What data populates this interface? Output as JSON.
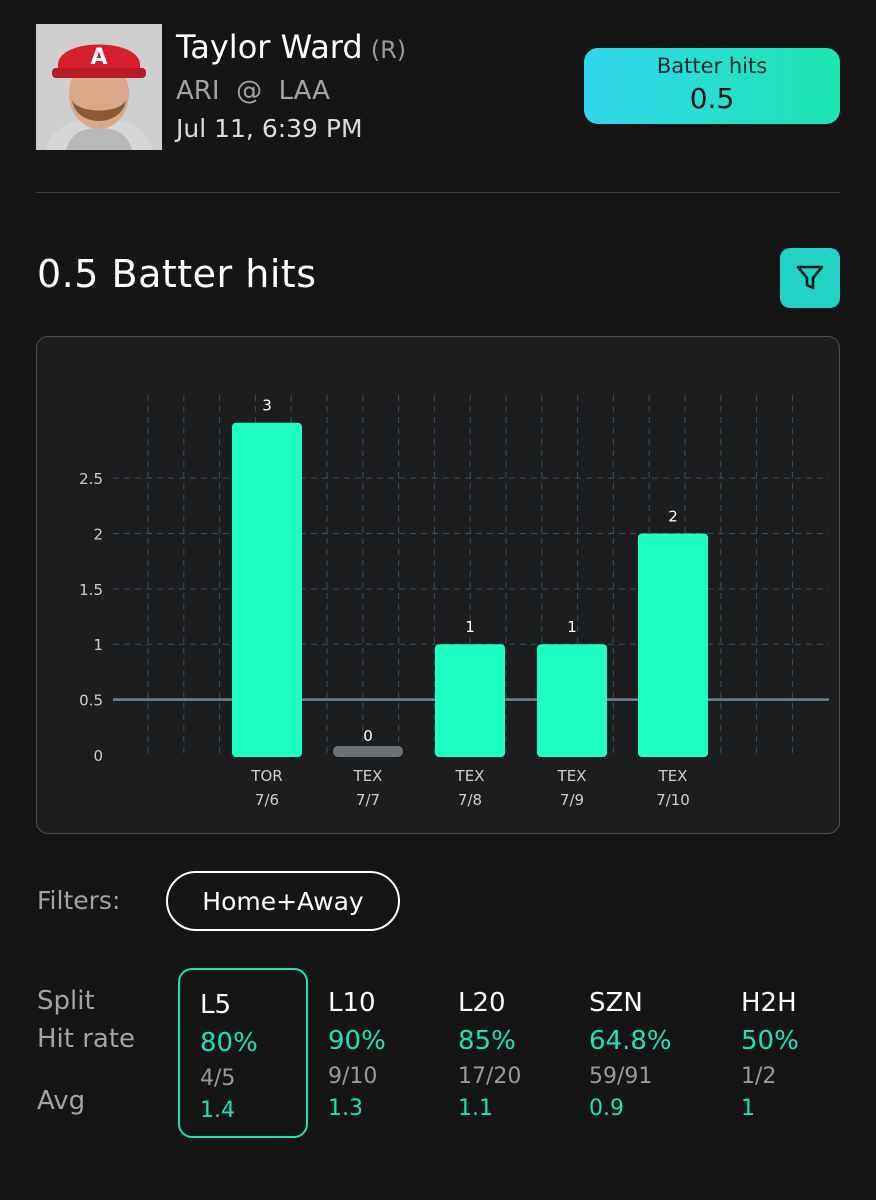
{
  "player": {
    "name": "Taylor Ward",
    "hand": "(R)",
    "away_team": "ARI",
    "at_symbol": "@",
    "home_team": "LAA",
    "game_time": "Jul 11, 6:39 PM"
  },
  "prop_badge": {
    "label": "Batter hits",
    "line": "0.5"
  },
  "section": {
    "title": "0.5 Batter hits",
    "filter_icon": "funnel-icon"
  },
  "chart_data": {
    "type": "bar",
    "categories": [
      "TOR 7/6",
      "TEX 7/7",
      "TEX 7/8",
      "TEX 7/9",
      "TEX 7/10"
    ],
    "opponents": [
      "TOR",
      "TEX",
      "TEX",
      "TEX",
      "TEX"
    ],
    "dates": [
      "7/6",
      "7/7",
      "7/8",
      "7/9",
      "7/10"
    ],
    "values": [
      3,
      0,
      1,
      1,
      2
    ],
    "data_labels": [
      "3",
      "0",
      "1",
      "1",
      "2"
    ],
    "y_ticks": [
      0,
      0.5,
      1,
      1.5,
      2,
      2.5
    ],
    "y_tick_labels": [
      "0",
      "0.5",
      "1",
      "1.5",
      "2",
      "2.5"
    ],
    "ylim": [
      0,
      3.25
    ],
    "threshold_line": 0.5,
    "grid": true,
    "title": "",
    "xlabel": "",
    "ylabel": "",
    "colors": {
      "bar": "#1fffc4",
      "zero_bar": "#6c7178",
      "threshold": "#6e8796",
      "grid": "#3f4e5b"
    }
  },
  "filters": {
    "label": "Filters:",
    "value": "Home+Away"
  },
  "splits": {
    "row_labels": {
      "split": "Split",
      "hit_rate": "Hit rate",
      "avg": "Avg"
    },
    "columns": [
      {
        "name": "L5",
        "hit_rate": "80%",
        "fraction": "4/5",
        "avg": "1.4",
        "active": true
      },
      {
        "name": "L10",
        "hit_rate": "90%",
        "fraction": "9/10",
        "avg": "1.3",
        "active": false
      },
      {
        "name": "L20",
        "hit_rate": "85%",
        "fraction": "17/20",
        "avg": "1.1",
        "active": false
      },
      {
        "name": "SZN",
        "hit_rate": "64.8%",
        "fraction": "59/91",
        "avg": "0.9",
        "active": false
      },
      {
        "name": "H2H",
        "hit_rate": "50%",
        "fraction": "1/2",
        "avg": "1",
        "active": false
      }
    ]
  },
  "colors": {
    "accent": "#1fe2b3",
    "background": "#151515",
    "card": "#1c1d1f",
    "badge_start": "#30d6ee",
    "badge_end": "#1ee6b0"
  }
}
